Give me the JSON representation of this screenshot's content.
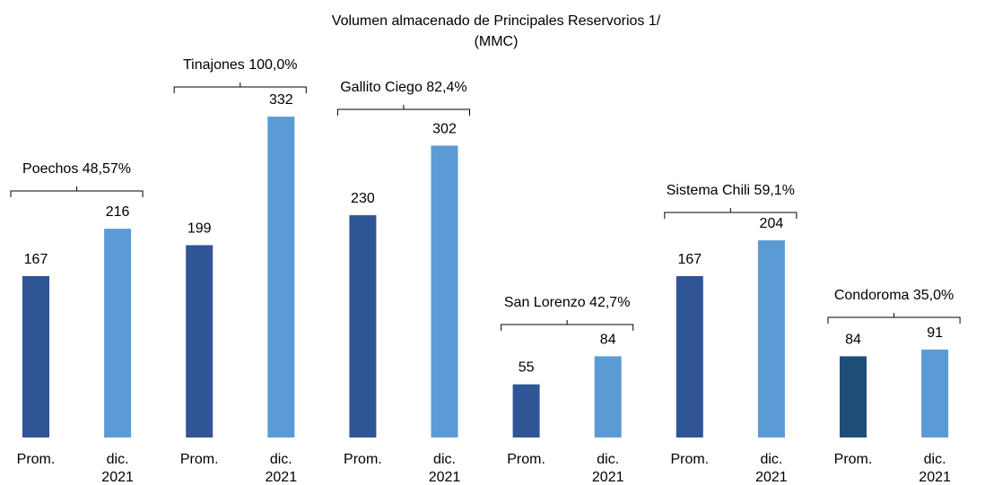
{
  "chart_data": {
    "type": "bar",
    "title": "Volumen almacenado de Principales Reservorios  1/",
    "subtitle": "(MMC)",
    "categories": [
      "Prom.",
      "dic. 2021",
      "Prom.",
      "dic. 2021",
      "Prom.",
      "dic. 2021",
      "Prom.",
      "dic. 2021",
      "Prom.",
      "dic. 2021",
      "Prom.",
      "dic. 2021"
    ],
    "values": [
      167,
      216,
      199,
      332,
      230,
      302,
      55,
      84,
      167,
      204,
      84,
      91
    ],
    "colors": [
      "#2f5597",
      "#5b9bd5",
      "#2f5597",
      "#5b9bd5",
      "#2f5597",
      "#5b9bd5",
      "#2f5597",
      "#5b9bd5",
      "#2f5597",
      "#5b9bd5",
      "#1f4e79",
      "#5b9bd5"
    ],
    "annotations": [
      "Poechos 48,57%",
      "Tinajones 100,0%",
      "Gallito Ciego 82,4%",
      "San Lorenzo 42,7%",
      "Sistema Chili 59,1%",
      "Condoroma 35,0%"
    ]
  }
}
